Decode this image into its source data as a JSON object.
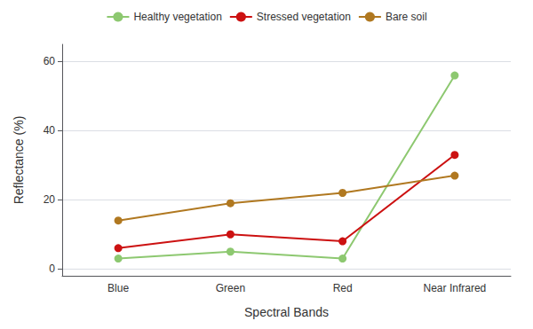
{
  "chart_data": {
    "type": "line",
    "categories": [
      "Blue",
      "Green",
      "Red",
      "Near Infrared"
    ],
    "series": [
      {
        "name": "Healthy vegetation",
        "color": "#8dc870",
        "values": [
          3,
          5,
          3,
          56
        ]
      },
      {
        "name": "Stressed vegetation",
        "color": "#cc1111",
        "values": [
          6,
          10,
          8,
          33
        ]
      },
      {
        "name": "Bare soil",
        "color": "#b07820",
        "values": [
          14,
          19,
          22,
          27
        ]
      }
    ],
    "xlabel": "Spectral Bands",
    "ylabel": "Reflectance (%)",
    "ylim": [
      -2,
      65
    ],
    "yticks": [
      0,
      20,
      40,
      60
    ],
    "grid": true,
    "legend": "top",
    "marker": "circle"
  }
}
